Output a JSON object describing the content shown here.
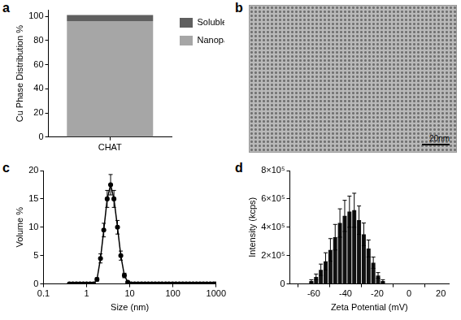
{
  "chart_data": [
    {
      "panel": "a",
      "type": "bar",
      "stacked": true,
      "grid": false,
      "legend": "right",
      "y_label": "Cu Phase Distribution %",
      "categories": [
        "CHAT"
      ],
      "series": [
        {
          "name": "Nanoparticulate %",
          "color": "#a6a6a6",
          "values": [
            96
          ]
        },
        {
          "name": "Soluble %",
          "color": "#5f5f5f",
          "values": [
            5
          ]
        }
      ],
      "ylim": [
        0,
        105
      ],
      "yticks": [
        0,
        20,
        40,
        60,
        80,
        100
      ]
    },
    {
      "panel": "b",
      "type": "image",
      "scale_bar": "20nm"
    },
    {
      "panel": "c",
      "type": "line",
      "grid": false,
      "log": "x",
      "color": "#000000",
      "marker": "circle",
      "line_style": "solid",
      "x_label": "Size (nm)",
      "y_label": "Volume %",
      "x": [
        0.4,
        0.48,
        0.58,
        0.7,
        0.84,
        1.0,
        1.2,
        1.45,
        1.74,
        2.1,
        2.5,
        3.0,
        3.6,
        4.3,
        5.2,
        6.2,
        7.5,
        9.0,
        10.8,
        13,
        15.6,
        18.8,
        22.6,
        27,
        32.5,
        39,
        47,
        56,
        68,
        81,
        98,
        117,
        141,
        169,
        203,
        244,
        293,
        352,
        423,
        508,
        610,
        733,
        880,
        1000
      ],
      "values": [
        0,
        0,
        0,
        0,
        0,
        0,
        0,
        0,
        0.8,
        4.5,
        9.5,
        15,
        17.5,
        15,
        10,
        5,
        1.5,
        0.3,
        0,
        0,
        0,
        0,
        0,
        0,
        0,
        0,
        0,
        0,
        0,
        0,
        0,
        0,
        0,
        0,
        0,
        0,
        0,
        0,
        0,
        0,
        0,
        0,
        0,
        0
      ],
      "errors": [
        0,
        0,
        0,
        0,
        0,
        0,
        0,
        0,
        0.3,
        0.8,
        1.2,
        1.5,
        1.8,
        1.5,
        1.2,
        0.8,
        0.4,
        0.1,
        0,
        0,
        0,
        0,
        0,
        0,
        0,
        0,
        0,
        0,
        0,
        0,
        0,
        0,
        0,
        0,
        0,
        0,
        0,
        0,
        0,
        0,
        0,
        0,
        0,
        0
      ],
      "xlim": [
        0.1,
        1000
      ],
      "xticks": [
        0.1,
        1,
        10,
        100,
        1000
      ],
      "ylim": [
        0,
        20
      ],
      "yticks": [
        0,
        5,
        10,
        15,
        20
      ]
    },
    {
      "panel": "d",
      "type": "histogram",
      "grid": false,
      "color": "#111111",
      "x_label": "Zeta Potential (mV)",
      "y_label": "Intensity (kcps)",
      "bins": [
        -72,
        -69,
        -66,
        -63,
        -60,
        -57,
        -54,
        -51,
        -48,
        -45,
        -42,
        -39,
        -36,
        -33,
        -30,
        -27,
        -24,
        -21,
        -18,
        -15,
        -12,
        -9,
        -6,
        -3,
        0,
        3,
        6,
        9,
        12,
        15,
        18,
        21,
        24
      ],
      "counts": [
        0,
        0,
        0,
        20000,
        50000,
        100000,
        160000,
        240000,
        330000,
        430000,
        480000,
        510000,
        520000,
        450000,
        350000,
        250000,
        150000,
        60000,
        20000,
        0,
        0,
        0,
        0,
        0,
        0,
        0,
        0,
        0,
        0,
        0,
        0,
        0
      ],
      "errors": [
        0,
        0,
        0,
        10000,
        20000,
        40000,
        60000,
        80000,
        90000,
        100000,
        110000,
        110000,
        120000,
        100000,
        80000,
        60000,
        40000,
        20000,
        10000,
        0,
        0,
        0,
        0,
        0,
        0,
        0,
        0,
        0,
        0,
        0,
        0,
        0
      ],
      "xlim": [
        -75,
        25
      ],
      "xticks": [
        -60,
        -40,
        -20,
        0,
        20
      ],
      "ylim": [
        0,
        800000
      ],
      "yticks": [
        0,
        {
          "value": 200000,
          "label": "2×10⁵"
        },
        {
          "value": 400000,
          "label": "4×10⁵"
        },
        {
          "value": 600000,
          "label": "6×10⁵"
        },
        {
          "value": 800000,
          "label": "8×10⁵"
        }
      ]
    }
  ]
}
